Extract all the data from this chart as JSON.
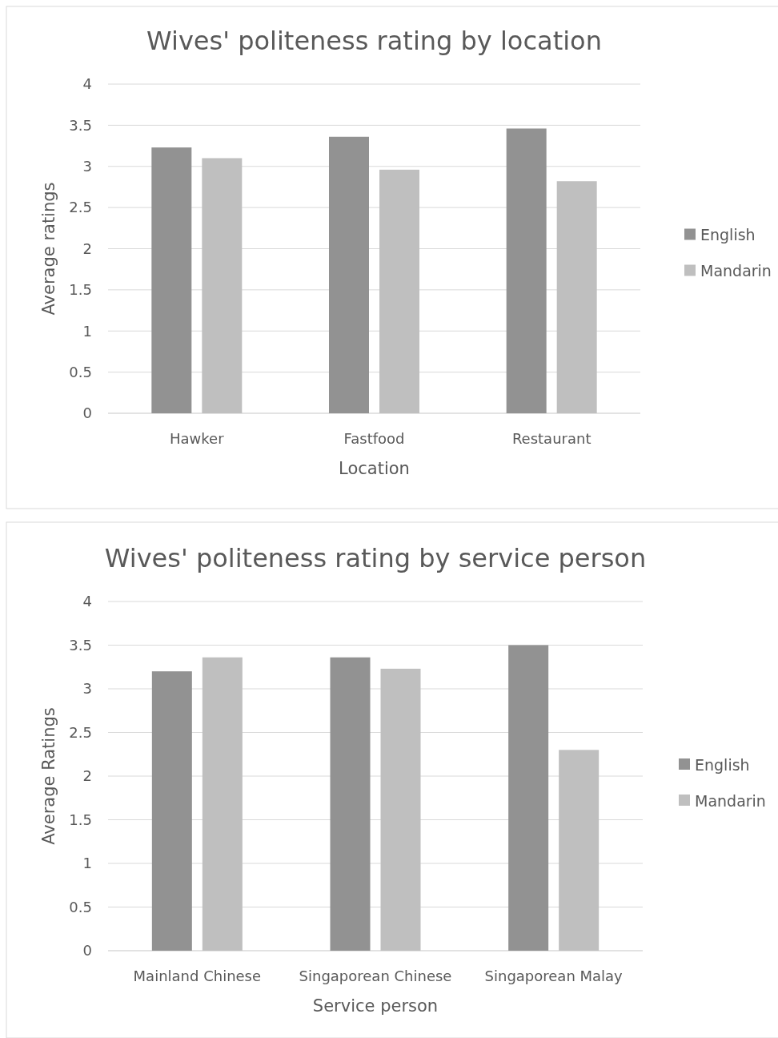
{
  "chart_data": [
    {
      "type": "bar",
      "title": "Wives' politeness rating by location",
      "xlabel": "Location",
      "ylabel": "Average ratings",
      "categories": [
        "Hawker",
        "Fastfood",
        "Restaurant"
      ],
      "series": [
        {
          "name": "English",
          "color": "#929292",
          "values": [
            3.23,
            3.36,
            3.46
          ]
        },
        {
          "name": "Mandarin",
          "color": "#bfbfbf",
          "values": [
            3.1,
            2.96,
            2.82
          ]
        }
      ],
      "ylim": [
        0,
        4
      ],
      "yticks": [
        0,
        {
          "value": 0.5,
          "label": "0.5"
        },
        1,
        {
          "value": 1.5,
          "label": "1.5"
        },
        2,
        {
          "value": 2.5,
          "label": "2.5"
        },
        3,
        {
          "value": 3.5,
          "label": "3.5"
        },
        4
      ],
      "grid": "y",
      "legend": "right"
    },
    {
      "type": "bar",
      "title": "Wives' politeness rating by service person",
      "xlabel": "Service person",
      "ylabel": "Average Ratings",
      "categories": [
        "Mainland Chinese",
        "Singaporean Chinese",
        "Singaporean Malay"
      ],
      "series": [
        {
          "name": "English",
          "color": "#929292",
          "values": [
            3.2,
            3.36,
            3.5
          ]
        },
        {
          "name": "Mandarin",
          "color": "#bfbfbf",
          "values": [
            3.36,
            3.23,
            2.3
          ]
        }
      ],
      "ylim": [
        0,
        4
      ],
      "yticks": [
        0,
        {
          "value": 0.5,
          "label": "0.5"
        },
        1,
        {
          "value": 1.5,
          "label": "1.5"
        },
        2,
        {
          "value": 2.5,
          "label": "2.5"
        },
        3,
        {
          "value": 3.5,
          "label": "3.5"
        },
        4
      ],
      "grid": "y",
      "legend": "right"
    }
  ]
}
